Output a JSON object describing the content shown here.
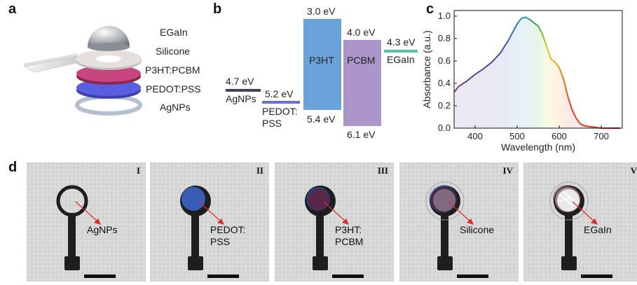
{
  "panel_labels": {
    "a": "a",
    "b": "b",
    "c": "c",
    "d": "d"
  },
  "panel_a": {
    "layers": [
      "EGaIn",
      "Silicone",
      "P3HT:PCBM",
      "PEDOT:PSS",
      "AgNPs"
    ]
  },
  "panel_b": {
    "agnps": {
      "value": "4.7 eV",
      "label": "AgNPs"
    },
    "pedot": {
      "value": "5.2 eV",
      "label_line1": "PEDOT:",
      "label_line2": "PSS"
    },
    "p3ht": {
      "top": "3.0 eV",
      "name": "P3HT",
      "bottom": "5.4 eV"
    },
    "pcbm": {
      "top": "4.0 eV",
      "name": "PCBM",
      "bottom": "6.1 eV"
    },
    "egain": {
      "value": "4.3 eV",
      "label": "EGaIn"
    },
    "colors": {
      "agnps": "#3d4758",
      "pedot": "#6c6fc9",
      "p3ht": "#6aa3da",
      "pcbm": "#ab95c9",
      "egain": "#57c2a8"
    }
  },
  "chart_data": {
    "type": "line",
    "xlabel": "Wavelength (nm)",
    "ylabel": "Absorbance (a.u.)",
    "xlim": [
      350,
      750
    ],
    "ylim": [
      0,
      1.05
    ],
    "xticks": [
      400,
      500,
      600,
      700
    ],
    "yticks": [
      0.0,
      0.2,
      0.4,
      0.6,
      0.8,
      1.0
    ],
    "xtick_labels": [
      "400",
      "500",
      "600",
      "700"
    ],
    "ytick_labels": [
      "0.0",
      "0.2",
      "0.4",
      "0.6",
      "0.8",
      "1.0"
    ],
    "series": [
      {
        "x": [
          350,
          360,
          380,
          400,
          420,
          440,
          460,
          480,
          500,
          510,
          520,
          530,
          540,
          550,
          560,
          570,
          580,
          590,
          600,
          610,
          620,
          630,
          640,
          650,
          660,
          680,
          700,
          720,
          745
        ],
        "y": [
          0.32,
          0.37,
          0.42,
          0.48,
          0.53,
          0.59,
          0.67,
          0.79,
          0.93,
          0.98,
          0.99,
          0.97,
          0.94,
          0.91,
          0.84,
          0.73,
          0.62,
          0.59,
          0.54,
          0.44,
          0.29,
          0.17,
          0.09,
          0.04,
          0.02,
          0.01,
          0.0,
          0.0,
          0.0
        ]
      }
    ],
    "grid": false
  },
  "panel_d": {
    "photos": [
      {
        "roman": "I",
        "label": "AgNPs"
      },
      {
        "roman": "II",
        "label": "PEDOT:\nPSS"
      },
      {
        "roman": "III",
        "label": "P3HT:\nPCBM"
      },
      {
        "roman": "IV",
        "label": "Silicone"
      },
      {
        "roman": "V",
        "label": "EGaIn"
      }
    ]
  }
}
